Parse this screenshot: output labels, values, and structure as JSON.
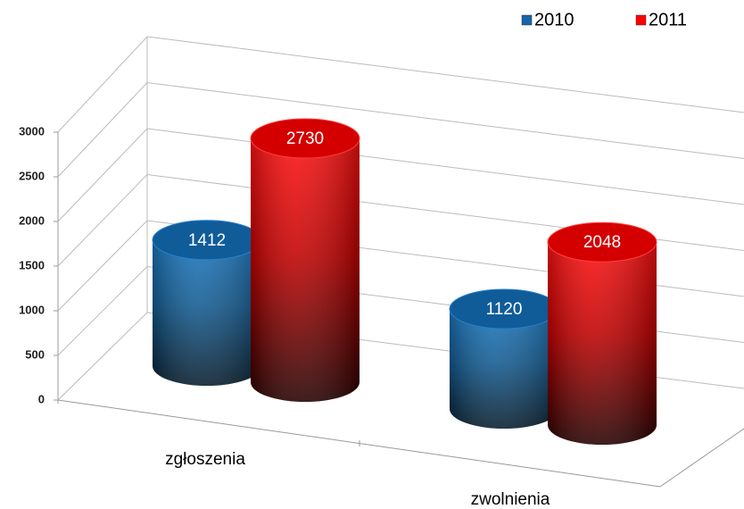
{
  "chart_data": {
    "type": "bar3d",
    "categories": [
      "zgłoszenia",
      "zwolnienia"
    ],
    "series": [
      {
        "name": "2010",
        "color": "#1565a8",
        "values": [
          1412,
          1120
        ]
      },
      {
        "name": "2011",
        "color": "#ff0000",
        "values": [
          2730,
          2048
        ]
      }
    ],
    "ylim": [
      0,
      3000
    ],
    "yticks": [
      0,
      500,
      1000,
      1500,
      2000,
      2500,
      3000
    ],
    "grid": true,
    "legend": "top-right"
  }
}
